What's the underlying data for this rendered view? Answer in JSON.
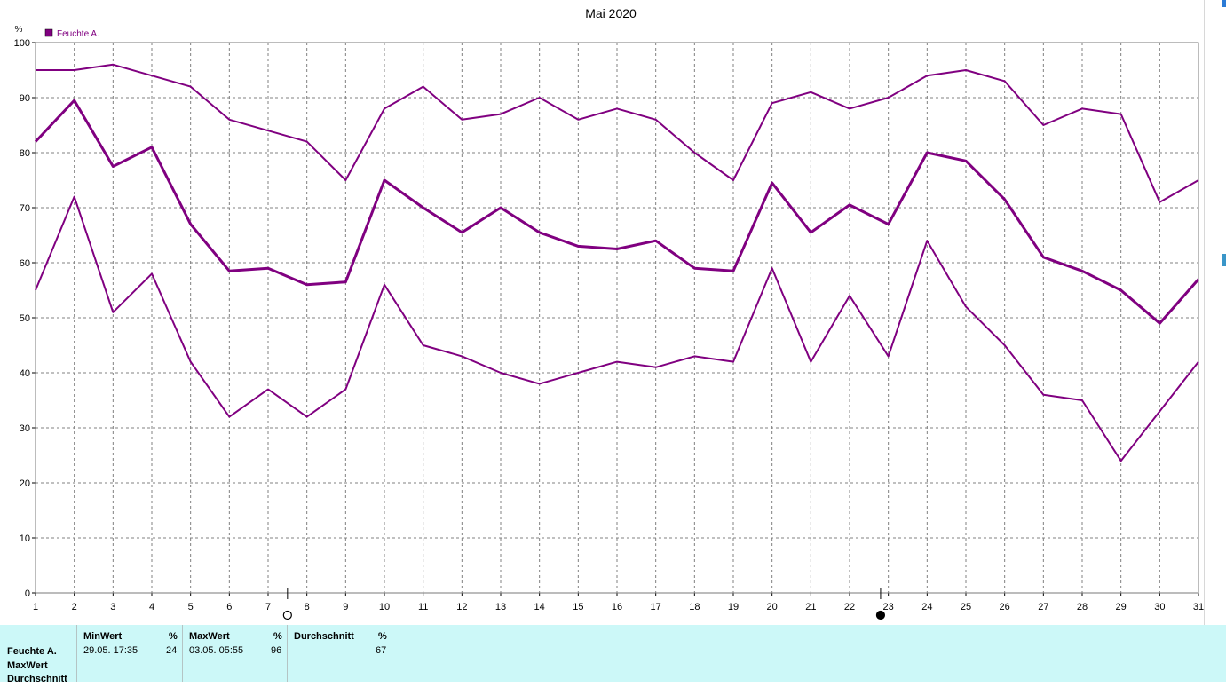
{
  "colors": {
    "series": "#800080",
    "grid": "#808080",
    "axis": "#000000",
    "panel": "#ccf8f8"
  },
  "legend": {
    "label": "Feuchte A."
  },
  "chart_data": {
    "type": "line",
    "title": "Mai 2020",
    "ylabel": "%",
    "xlabel": "",
    "x": [
      1,
      2,
      3,
      4,
      5,
      6,
      7,
      8,
      9,
      10,
      11,
      12,
      13,
      14,
      15,
      16,
      17,
      18,
      19,
      20,
      21,
      22,
      23,
      24,
      25,
      26,
      27,
      28,
      29,
      30,
      31
    ],
    "ylim": [
      0,
      100
    ],
    "yticks": [
      0,
      10,
      20,
      30,
      40,
      50,
      60,
      70,
      80,
      90,
      100
    ],
    "grid": true,
    "legend_position": "top-left",
    "series": [
      {
        "name": "Feuchte A.",
        "role": "max",
        "values": [
          95,
          95,
          96,
          94,
          92,
          86,
          84,
          82,
          75,
          88,
          92,
          86,
          87,
          90,
          86,
          88,
          86,
          80,
          75,
          89,
          91,
          88,
          90,
          94,
          95,
          93,
          85,
          88,
          87,
          71,
          75
        ]
      },
      {
        "name": "Feuchte A.",
        "role": "avg",
        "values": [
          82,
          89.5,
          77.5,
          81,
          67,
          58.5,
          59,
          56,
          56.5,
          75,
          70,
          65.5,
          70,
          65.5,
          63,
          62.5,
          64,
          59,
          58.5,
          74.5,
          65.5,
          70.5,
          67,
          80,
          78.5,
          71.5,
          61,
          58.5,
          55,
          49,
          57
        ]
      },
      {
        "name": "Feuchte A.",
        "role": "min",
        "values": [
          55,
          72,
          51,
          58,
          42,
          32,
          37,
          32,
          37,
          56,
          45,
          43,
          40,
          38,
          40,
          42,
          41,
          43,
          42,
          59,
          42,
          54,
          43,
          64,
          52,
          45,
          36,
          35,
          24,
          33,
          42
        ]
      }
    ],
    "moon_phases": [
      {
        "phase": "full-moon",
        "x": 7.5
      },
      {
        "phase": "new-moon",
        "x": 22.8
      }
    ]
  },
  "stats": {
    "row_labels": [
      "Feuchte A.",
      "MaxWert",
      "Durchschnitt"
    ],
    "columns": [
      {
        "header": "MinWert",
        "unit": "%",
        "time": "29.05.  17:35",
        "value": "24"
      },
      {
        "header": "MaxWert",
        "unit": "%",
        "time": "03.05.  05:55",
        "value": "96"
      },
      {
        "header": "Durchschnitt",
        "unit": "%",
        "time": "",
        "value": "67"
      }
    ]
  }
}
